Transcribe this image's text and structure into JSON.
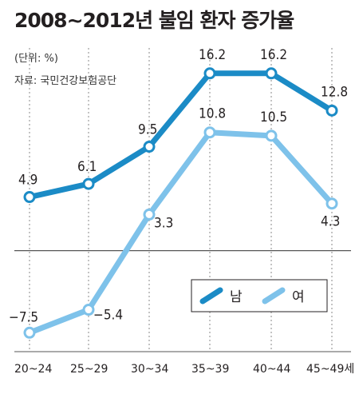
{
  "title": "2008~2012년 불임 환자 증가율",
  "unit": "(단위: %)",
  "source": "자료: 국민건강보험공단",
  "chart_data": {
    "type": "line",
    "title": "2008~2012년 불임 환자 증가율",
    "categories": [
      "20~24",
      "25~29",
      "30~34",
      "35~39",
      "40~44",
      "45~49세"
    ],
    "series": [
      {
        "name": "남",
        "values": [
          4.9,
          6.1,
          9.5,
          16.2,
          16.2,
          12.8
        ],
        "labels": [
          "4.9",
          "6.1",
          "9.5",
          "16.2",
          "16.2",
          "12.8"
        ],
        "color": "#1b8bc6"
      },
      {
        "name": "여",
        "values": [
          -7.5,
          -5.4,
          3.3,
          10.8,
          10.5,
          4.3
        ],
        "labels": [
          "−7.5",
          "−5.4",
          "3.3",
          "10.8",
          "10.5",
          "4.3"
        ],
        "color": "#7ec2ea"
      }
    ],
    "ylim": [
      -8.5,
      17.5
    ],
    "baseline": 0,
    "grid": "vertical-dashed",
    "legend": "center-right"
  }
}
